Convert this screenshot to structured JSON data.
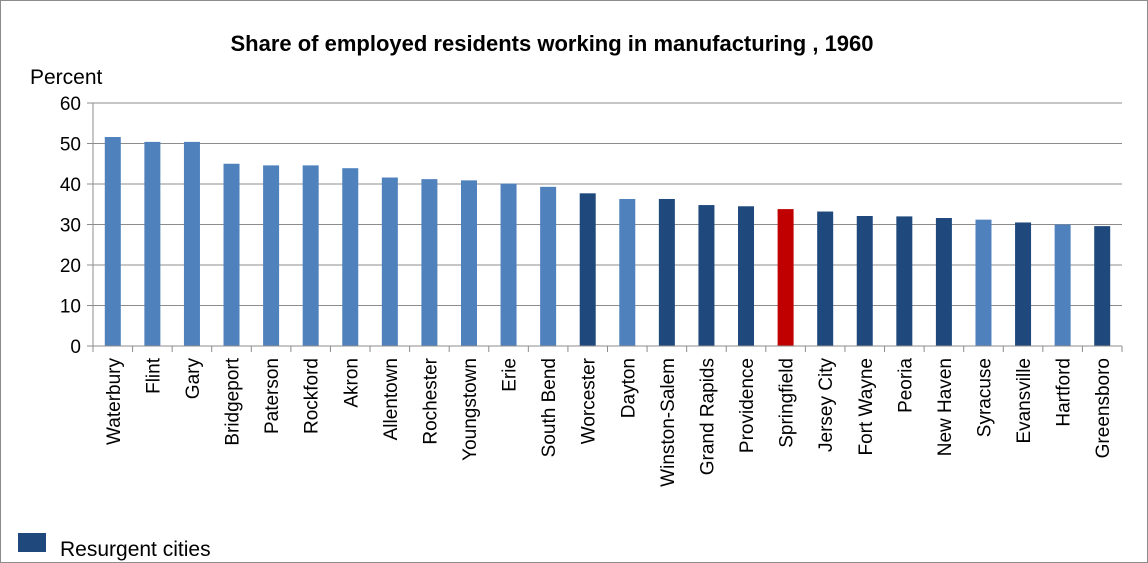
{
  "chart_data": {
    "type": "bar",
    "title": "Share of employed residents working in manufacturing , 1960",
    "ylabel": "Percent",
    "xlabel": "",
    "ylim": [
      0,
      60
    ],
    "yticks": [
      0,
      10,
      20,
      30,
      40,
      50,
      60
    ],
    "grid": true,
    "categories": [
      "Waterbury",
      "Flint",
      "Gary",
      "Bridgeport",
      "Paterson",
      "Rockford",
      "Akron",
      "Allentown",
      "Rochester",
      "Youngstown",
      "Erie",
      "South Bend",
      "Worcester",
      "Dayton",
      "Winston-Salem",
      "Grand Rapids",
      "Providence",
      "Springfield",
      "Jersey  City",
      "Fort Wayne",
      "Peoria",
      "New Haven",
      "Syracuse",
      "Evansville",
      "Hartford",
      "Greensboro"
    ],
    "values": [
      51.6,
      50.4,
      50.4,
      45.0,
      44.6,
      44.6,
      43.9,
      41.6,
      41.2,
      40.9,
      40.1,
      39.3,
      37.7,
      36.3,
      36.3,
      34.8,
      34.5,
      33.8,
      33.2,
      32.1,
      32.0,
      31.6,
      31.2,
      30.5,
      30.0,
      29.6
    ],
    "groups": [
      "other",
      "other",
      "other",
      "other",
      "other",
      "other",
      "other",
      "other",
      "other",
      "other",
      "other",
      "other",
      "resurgent",
      "other",
      "resurgent",
      "resurgent",
      "resurgent",
      "highlight",
      "resurgent",
      "resurgent",
      "resurgent",
      "resurgent",
      "other",
      "resurgent",
      "other",
      "resurgent"
    ],
    "colors": {
      "other": "#4f81bd",
      "resurgent": "#1f497d",
      "highlight": "#c00000",
      "grid": "#8c8c8c",
      "axis": "#8c8c8c"
    },
    "legend": {
      "position": "bottom-left",
      "entries": [
        {
          "label": "Resurgent cities",
          "color": "#1f497d"
        }
      ]
    }
  }
}
